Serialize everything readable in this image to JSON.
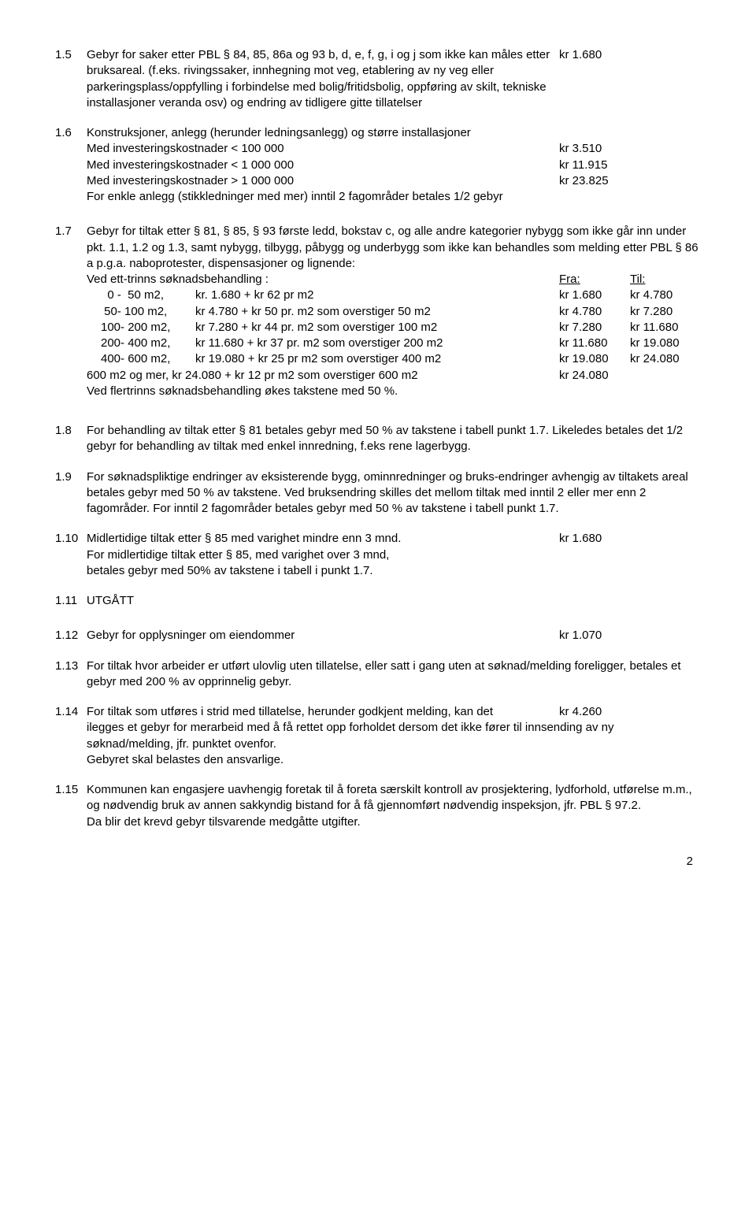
{
  "s1_5": {
    "num": "1.5",
    "text": "Gebyr for saker etter PBL § 84, 85, 86a og 93 b, d, e, f, g, i og j som ikke kan måles etter bruksareal. (f.eks. rivingssaker,  innhegning mot veg, etablering av ny veg eller parkeringsplass/oppfylling i forbindelse med bolig/fritidsbolig, oppføring av skilt, tekniske installasjoner veranda osv) og endring av tidligere gitte tillatelser",
    "val": "kr 1.680"
  },
  "s1_6": {
    "num": "1.6",
    "intro": "Konstruksjoner, anlegg (herunder ledningsanlegg) og større installasjoner",
    "r1": {
      "t": "Med investeringskostnader  <   100 000",
      "v": "kr 3.510"
    },
    "r2": {
      "t": "Med  investeringskostnader < 1 000 000",
      "v": "kr 11.915"
    },
    "r3": {
      "t": "Med investeringskostnader  > 1 000 000",
      "v": "kr 23.825"
    },
    "tail": "For enkle anlegg (stikkledninger med mer) inntil 2 fagområder betales 1/2 gebyr"
  },
  "s1_7": {
    "num": "1.7",
    "intro": "Gebyr for tiltak etter § 81, § 85, § 93 første ledd, bokstav c, og alle andre kategorier nybygg som ikke går inn under pkt. 1.1, 1.2 og 1.3, samt nybygg, tilbygg, påbygg og underbygg som ikke kan behandles som melding etter PBL § 86 a p.g.a. naboprotester, dispensasjoner og lignende:",
    "header": {
      "t": "Ved ett-trinns søknadsbehandling :",
      "c3": "Fra:",
      "c4": "Til:"
    },
    "rows": [
      {
        "c1": "  0 -  50 m2,",
        "c2": "kr.  1.680 + kr 62 pr m2",
        "c3": "kr 1.680",
        "c4": "kr 4.780"
      },
      {
        "c1": " 50- 100 m2,",
        "c2": "kr   4.780 + kr 50 pr. m2 som overstiger  50  m2",
        "c3": "kr 4.780",
        "c4": "kr 7.280"
      },
      {
        "c1": "100- 200 m2,",
        "c2": "kr   7.280 + kr 44 pr. m2 som overstiger 100 m2",
        "c3": "kr 7.280",
        "c4": "kr 11.680"
      },
      {
        "c1": "200- 400 m2,",
        "c2": "kr 11.680 + kr 37 pr. m2 som overstiger 200 m2",
        "c3": "kr 11.680",
        "c4": "kr 19.080"
      },
      {
        "c1": "400- 600 m2,",
        "c2": "kr 19.080 + kr 25 pr m2 som overstiger  400 m2",
        "c3": "kr 19.080",
        "c4": "kr 24.080"
      }
    ],
    "row6": {
      "t": "600 m2 og mer,  kr 24.080 + kr 12 pr m2 som overstiger 600 m2",
      "v": "kr 24.080"
    },
    "tail": "Ved flertrinns søknadsbehandling økes takstene med 50 %."
  },
  "s1_8": {
    "num": "1.8",
    "text": "For behandling av tiltak etter § 81 betales gebyr med 50 % av takstene i tabell punkt 1.7. Likeledes betales det 1/2 gebyr for behandling av tiltak med enkel innredning, f.eks rene lagerbygg."
  },
  "s1_9": {
    "num": "1.9",
    "text": "For søknadspliktige endringer av eksisterende bygg, ominnredninger og bruks-endringer avhengig av tiltakets areal betales gebyr med 50 % av takstene. Ved bruksendring skilles det mellom tiltak med inntil 2 eller mer enn 2 fagområder. For inntil 2 fagområder betales gebyr med 50 % av takstene i tabell punkt 1.7."
  },
  "s1_10": {
    "num": "1.10",
    "line1": "Midlertidige tiltak etter § 85 med varighet mindre enn 3 mnd.",
    "val": "kr 1.680",
    "line2": "For midlertidige tiltak etter § 85, med varighet over 3 mnd,",
    "line3": "betales gebyr med 50% av takstene i tabell i punkt 1.7."
  },
  "s1_11": {
    "num": "1.11",
    "text": "UTGÅTT"
  },
  "s1_12": {
    "num": "1.12",
    "text": "Gebyr for opplysninger om eiendommer",
    "val": "kr 1.070"
  },
  "s1_13": {
    "num": "1.13",
    "text": "For tiltak hvor arbeider er utført ulovlig uten tillatelse, eller satt i gang uten at søknad/melding foreligger, betales et gebyr med 200 % av opprinnelig gebyr."
  },
  "s1_14": {
    "num": "1.14",
    "line1": "For tiltak som utføres i strid med tillatelse, herunder godkjent melding, kan det",
    "val": "kr 4.260",
    "rest": "ilegges et gebyr for merarbeid med å få rettet opp forholdet dersom det ikke fører til innsending av ny søknad/melding, jfr. punktet ovenfor.\nGebyret skal belastes den ansvarlige."
  },
  "s1_15": {
    "num": "1.15",
    "text": "Kommunen kan engasjere uavhengig foretak til å foreta særskilt kontroll av prosjektering, lydforhold, utførelse m.m., og nødvendig bruk av annen sakkyndig bistand for å få gjennomført nødvendig inspeksjon, jfr. PBL § 97.2.\nDa blir det krevd gebyr tilsvarende medgåtte utgifter."
  },
  "page": "2"
}
